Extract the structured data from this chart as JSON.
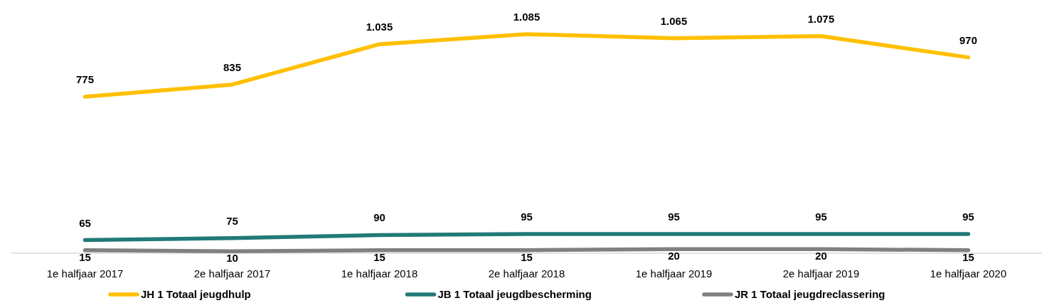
{
  "chart_data": {
    "type": "line",
    "categories": [
      "1e halfjaar 2017",
      "2e halfjaar 2017",
      "1e halfjaar 2018",
      "2e halfjaar 2018",
      "1e halfjaar 2019",
      "2e halfjaar 2019",
      "1e halfjaar 2020"
    ],
    "series": [
      {
        "name": "JH 1 Totaal jeugdhulp",
        "color": "#ffc000",
        "values": [
          775,
          835,
          1035,
          1085,
          1065,
          1075,
          970
        ],
        "value_labels": [
          "775",
          "835",
          "1.035",
          "1.085",
          "1.065",
          "1.075",
          "970"
        ]
      },
      {
        "name": "JB 1 Totaal jeugdbescherming",
        "color": "#217a78",
        "values": [
          65,
          75,
          90,
          95,
          95,
          95,
          95
        ],
        "value_labels": [
          "65",
          "75",
          "90",
          "95",
          "95",
          "95",
          "95"
        ]
      },
      {
        "name": "JR 1 Totaal jeugdreclassering",
        "color": "#808080",
        "values": [
          15,
          10,
          15,
          15,
          20,
          20,
          15
        ],
        "value_labels": [
          "15",
          "10",
          "15",
          "15",
          "20",
          "20",
          "15"
        ]
      }
    ],
    "legend": "bottom"
  }
}
